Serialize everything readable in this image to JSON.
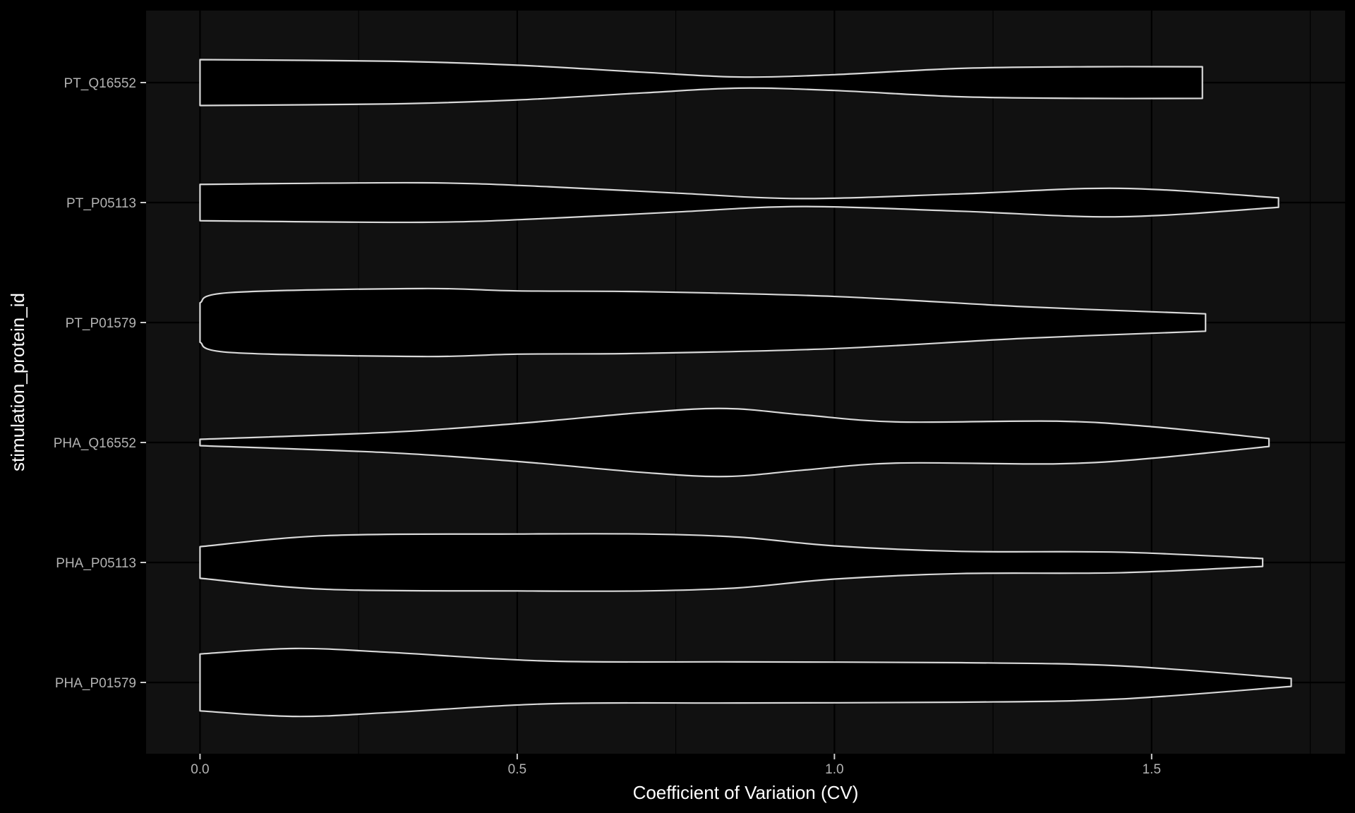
{
  "chart_data": {
    "type": "violin",
    "orientation": "horizontal",
    "xlabel": "Coefficient of Variation (CV)",
    "ylabel": "stimulation_protein_id",
    "xlim": [
      -0.085,
      1.805
    ],
    "x_ticks": [
      0.0,
      0.5,
      1.0,
      1.5
    ],
    "x_tick_labels": [
      "0.0",
      "0.5",
      "1.0",
      "1.5"
    ],
    "grid": true,
    "colors": {
      "background": "#000000",
      "panel": "#111111",
      "grid": "#000000",
      "violin_fill": "#000000",
      "violin_outline": "#d9d9d9"
    },
    "categories": [
      "PT_Q16552",
      "PT_P05113",
      "PT_P01579",
      "PHA_Q16552",
      "PHA_P05113",
      "PHA_P01579"
    ],
    "series": [
      {
        "category": "PT_Q16552",
        "min": 0.0,
        "max": 1.58,
        "profile": [
          [
            0.0,
            0.29
          ],
          [
            0.3,
            0.27
          ],
          [
            0.5,
            0.22
          ],
          [
            0.7,
            0.13
          ],
          [
            0.85,
            0.07
          ],
          [
            1.0,
            0.1
          ],
          [
            1.2,
            0.18
          ],
          [
            1.4,
            0.2
          ],
          [
            1.58,
            0.2
          ]
        ]
      },
      {
        "category": "PT_P05113",
        "min": 0.0,
        "max": 1.7,
        "profile": [
          [
            0.0,
            0.23
          ],
          [
            0.35,
            0.25
          ],
          [
            0.55,
            0.2
          ],
          [
            0.75,
            0.12
          ],
          [
            0.95,
            0.05
          ],
          [
            1.2,
            0.11
          ],
          [
            1.45,
            0.18
          ],
          [
            1.7,
            0.06
          ]
        ]
      },
      {
        "category": "PT_P01579",
        "min": 0.0,
        "max": 1.585,
        "profile": [
          [
            0.0,
            0.25
          ],
          [
            0.05,
            0.38
          ],
          [
            0.35,
            0.43
          ],
          [
            0.5,
            0.4
          ],
          [
            0.7,
            0.39
          ],
          [
            1.0,
            0.33
          ],
          [
            1.3,
            0.2
          ],
          [
            1.585,
            0.11
          ]
        ]
      },
      {
        "category": "PHA_Q16552",
        "min": 0.0,
        "max": 1.685,
        "profile": [
          [
            0.0,
            0.04
          ],
          [
            0.3,
            0.13
          ],
          [
            0.5,
            0.24
          ],
          [
            0.7,
            0.38
          ],
          [
            0.83,
            0.43
          ],
          [
            0.95,
            0.35
          ],
          [
            1.1,
            0.26
          ],
          [
            1.35,
            0.27
          ],
          [
            1.5,
            0.2
          ],
          [
            1.685,
            0.05
          ]
        ]
      },
      {
        "category": "PHA_P05113",
        "min": 0.0,
        "max": 1.675,
        "profile": [
          [
            0.0,
            0.2
          ],
          [
            0.2,
            0.34
          ],
          [
            0.5,
            0.36
          ],
          [
            0.7,
            0.36
          ],
          [
            0.85,
            0.32
          ],
          [
            1.0,
            0.21
          ],
          [
            1.2,
            0.14
          ],
          [
            1.45,
            0.13
          ],
          [
            1.675,
            0.05
          ]
        ]
      },
      {
        "category": "PHA_P01579",
        "min": 0.0,
        "max": 1.72,
        "profile": [
          [
            0.0,
            0.36
          ],
          [
            0.15,
            0.43
          ],
          [
            0.3,
            0.38
          ],
          [
            0.55,
            0.27
          ],
          [
            0.85,
            0.26
          ],
          [
            1.2,
            0.25
          ],
          [
            1.45,
            0.21
          ],
          [
            1.72,
            0.05
          ]
        ]
      }
    ]
  }
}
